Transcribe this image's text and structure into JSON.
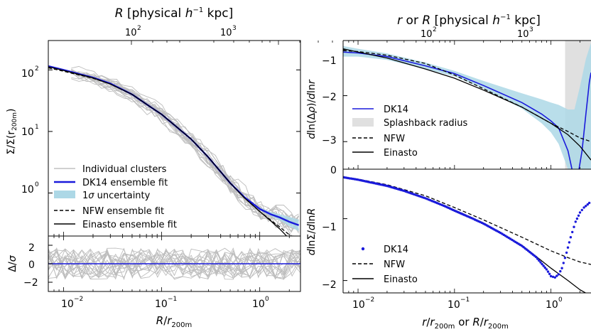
{
  "chart_data": [
    {
      "type": "line",
      "panel": "left-top",
      "xscale": "log",
      "yscale": "log",
      "xlim": [
        0.007,
        2.6
      ],
      "ylim": [
        0.2,
        300
      ],
      "xlabel": "",
      "ylabel": "Σ/Σ(r200m)",
      "top_axis_label": "R [physical h⁻¹ kpc]",
      "top_ticks": [
        "10²",
        "10³"
      ],
      "y_ticks": [
        "10⁰",
        "10¹",
        "10²"
      ],
      "legend": {
        "placement": "lower-left",
        "entries": [
          "Individual clusters",
          "DK14 ensemble fit",
          "1σ uncertainty",
          "NFW ensemble fit",
          "Einasto ensemble fit"
        ]
      },
      "series": [
        {
          "name": "DK14 ensemble fit",
          "color": "#1a1adb",
          "x": [
            0.007,
            0.01,
            0.02,
            0.03,
            0.05,
            0.08,
            0.1,
            0.15,
            0.2,
            0.3,
            0.5,
            0.7,
            1.0,
            1.3,
            1.6,
            2.0,
            2.5
          ],
          "y": [
            115,
            100,
            75,
            60,
            40,
            24,
            19,
            11,
            7.5,
            3.8,
            1.45,
            0.85,
            0.55,
            0.45,
            0.4,
            0.34,
            0.3
          ]
        },
        {
          "name": "NFW ensemble fit",
          "color": "#000000",
          "dash": "dashed",
          "x": [
            0.007,
            0.01,
            0.02,
            0.03,
            0.05,
            0.08,
            0.1,
            0.15,
            0.2,
            0.3,
            0.5,
            0.7,
            1.0,
            1.3,
            1.6,
            2.0,
            2.5
          ],
          "y": [
            108,
            95,
            73,
            59,
            40,
            24,
            19,
            11,
            7.5,
            3.8,
            1.45,
            0.83,
            0.5,
            0.36,
            0.28,
            0.21,
            0.16
          ]
        },
        {
          "name": "Einasto ensemble fit",
          "color": "#000000",
          "x": [
            0.007,
            0.01,
            0.02,
            0.03,
            0.05,
            0.08,
            0.1,
            0.15,
            0.2,
            0.3,
            0.5,
            0.7,
            1.0,
            1.3,
            1.6,
            2.0,
            2.5
          ],
          "y": [
            112,
            98,
            74,
            59,
            40,
            24,
            19,
            11,
            7.5,
            3.8,
            1.45,
            0.83,
            0.5,
            0.35,
            0.26,
            0.18,
            0.12
          ]
        }
      ],
      "band": {
        "name": "1σ uncertainty",
        "color": "#add8e6",
        "x": [
          1.0,
          1.3,
          1.6,
          2.0,
          2.5
        ],
        "lo": [
          0.53,
          0.42,
          0.36,
          0.29,
          0.24
        ],
        "hi": [
          0.58,
          0.49,
          0.45,
          0.41,
          0.37
        ]
      }
    },
    {
      "type": "line",
      "panel": "left-bottom",
      "xscale": "log",
      "xlim": [
        0.007,
        2.6
      ],
      "ylim": [
        -3,
        3
      ],
      "xlabel": "R/r200m",
      "ylabel": "Δ/σ",
      "x_ticks": [
        "10⁻²",
        "10⁻¹",
        "10⁰"
      ],
      "y_ticks": [
        "-2",
        "0",
        "2"
      ],
      "series": [
        {
          "name": "DK14 ensemble fit",
          "color": "#1a1adb",
          "x": [
            0.007,
            2.6
          ],
          "y": [
            0,
            0
          ]
        }
      ]
    },
    {
      "type": "line",
      "panel": "right-top",
      "xscale": "log",
      "xlim": [
        0.007,
        2.6
      ],
      "ylim": [
        -3.6,
        -0.8
      ],
      "ylabel": "dln(Δρ)/dlnr",
      "top_axis_label": "r or R [physical h⁻¹ kpc]",
      "top_ticks": [
        "10²",
        "10³"
      ],
      "y_ticks": [
        "-1",
        "-2",
        "-3",
        "0"
      ],
      "legend": {
        "placement": "lower-left",
        "entries": [
          "DK14",
          "Splashback radius",
          "NFW",
          "Einasto"
        ]
      },
      "splashback_range": [
        1.4,
        2.6
      ],
      "series": [
        {
          "name": "DK14",
          "color": "#1a1adb",
          "x": [
            0.007,
            0.01,
            0.02,
            0.05,
            0.1,
            0.2,
            0.5,
            0.8,
            1.0,
            1.2,
            1.5,
            1.75,
            1.9,
            2.1,
            2.3,
            2.5,
            2.6
          ],
          "y": [
            -1.05,
            -1.07,
            -1.15,
            -1.35,
            -1.52,
            -1.78,
            -2.15,
            -2.4,
            -2.55,
            -2.7,
            -3.2,
            -3.85,
            -3.75,
            -3.2,
            -2.4,
            -1.7,
            -1.5
          ]
        },
        {
          "name": "NFW",
          "color": "#000000",
          "dash": "dashed",
          "x": [
            0.007,
            0.01,
            0.02,
            0.05,
            0.1,
            0.2,
            0.5,
            1.0,
            1.5,
            2.0,
            2.6
          ],
          "y": [
            -1.02,
            -1.04,
            -1.12,
            -1.3,
            -1.55,
            -1.85,
            -2.25,
            -2.6,
            -2.78,
            -2.92,
            -3.0
          ]
        },
        {
          "name": "Einasto",
          "color": "#000000",
          "x": [
            0.007,
            0.01,
            0.02,
            0.05,
            0.1,
            0.2,
            0.5,
            1.0,
            1.5,
            2.0,
            2.6
          ],
          "y": [
            -0.98,
            -1.05,
            -1.18,
            -1.42,
            -1.62,
            -1.88,
            -2.25,
            -2.6,
            -2.85,
            -3.1,
            -3.4
          ]
        }
      ],
      "band": {
        "name": "1σ uncertainty",
        "color": "#add8e6",
        "x": [
          0.007,
          0.01,
          0.02,
          0.05,
          0.1,
          0.2,
          0.5,
          0.8,
          1.0,
          1.2,
          1.5,
          1.75,
          2.0,
          2.3,
          2.6
        ],
        "lo": [
          -1.15,
          -1.15,
          -1.22,
          -1.42,
          -1.58,
          -1.85,
          -2.28,
          -2.6,
          -2.8,
          -3.05,
          -3.6,
          -3.6,
          -3.6,
          -3.6,
          -3.6
        ],
        "hi": [
          -0.92,
          -0.98,
          -1.08,
          -1.28,
          -1.46,
          -1.68,
          -1.95,
          -2.08,
          -2.15,
          -2.2,
          -2.3,
          -2.3,
          -1.8,
          -1.2,
          -0.85
        ]
      }
    },
    {
      "type": "line",
      "panel": "right-bottom",
      "xscale": "log",
      "xlim": [
        0.007,
        2.6
      ],
      "ylim": [
        -2.2,
        -0.2
      ],
      "xlabel": "r/r200m or R/r200m",
      "ylabel": "dlnΣ/dlnR",
      "x_ticks": [
        "10⁻²",
        "10⁻¹",
        "10⁰"
      ],
      "y_ticks": [
        "-1",
        "-2"
      ],
      "legend": {
        "placement": "lower-left",
        "entries": [
          "DK14",
          "NFW",
          "Einasto"
        ]
      },
      "series": [
        {
          "name": "DK14",
          "color": "#1a1adb",
          "marker": "dot",
          "x": [
            0.007,
            0.01,
            0.02,
            0.03,
            0.05,
            0.08,
            0.1,
            0.15,
            0.2,
            0.3,
            0.5,
            0.7,
            0.9,
            1.0,
            1.1,
            1.2,
            1.3,
            1.45,
            1.6,
            1.8,
            2.0,
            2.2,
            2.4,
            2.6
          ],
          "y": [
            -0.33,
            -0.37,
            -0.47,
            -0.55,
            -0.67,
            -0.8,
            -0.87,
            -0.99,
            -1.08,
            -1.23,
            -1.44,
            -1.62,
            -1.82,
            -1.93,
            -1.95,
            -1.9,
            -1.8,
            -1.55,
            -1.3,
            -1.05,
            -0.9,
            -0.82,
            -0.77,
            -0.72
          ]
        },
        {
          "name": "NFW",
          "color": "#000000",
          "dash": "dashed",
          "x": [
            0.007,
            0.01,
            0.02,
            0.05,
            0.1,
            0.2,
            0.5,
            1.0,
            1.5,
            2.0,
            2.6
          ],
          "y": [
            -0.33,
            -0.36,
            -0.45,
            -0.63,
            -0.82,
            -1.02,
            -1.3,
            -1.52,
            -1.63,
            -1.7,
            -1.74
          ]
        },
        {
          "name": "Einasto",
          "color": "#000000",
          "x": [
            0.007,
            0.01,
            0.02,
            0.05,
            0.1,
            0.2,
            0.5,
            1.0,
            1.5,
            2.0,
            2.6
          ],
          "y": [
            -0.32,
            -0.37,
            -0.47,
            -0.67,
            -0.86,
            -1.07,
            -1.43,
            -1.8,
            -2.0,
            -2.15,
            -2.25
          ]
        }
      ]
    }
  ]
}
